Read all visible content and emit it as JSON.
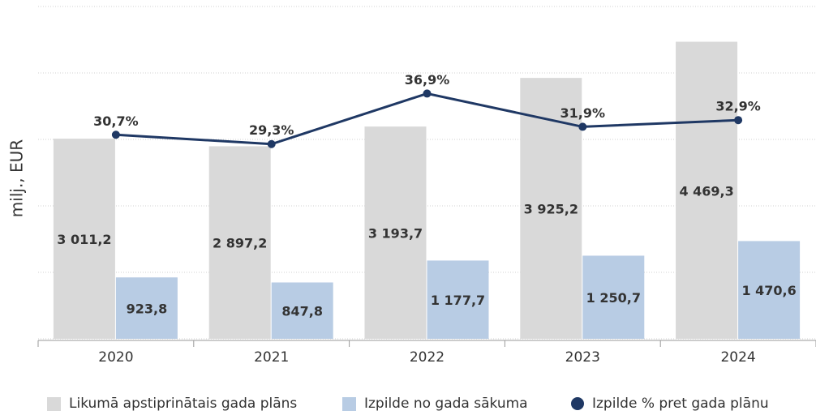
{
  "chart_data": {
    "type": "bar",
    "y_label": "milj., EUR",
    "categories": [
      "2020",
      "2021",
      "2022",
      "2023",
      "2024"
    ],
    "series": [
      {
        "name": "Likumā apstiprinātais gada plāns",
        "color": "#d9d9d9",
        "type": "bar",
        "values": [
          3011.2,
          2897.2,
          3193.7,
          3925.2,
          4469.3
        ],
        "value_labels": [
          "3 011,2",
          "2 897,2",
          "3 193,7",
          "3 925,2",
          "4 469,3"
        ]
      },
      {
        "name": "Izpilde no gada sākuma",
        "color": "#b8cce4",
        "type": "bar",
        "values": [
          923.8,
          847.8,
          1177.7,
          1250.7,
          1470.6
        ],
        "value_labels": [
          "923,8",
          "847,8",
          "1 177,7",
          "1 250,7",
          "1 470,6"
        ]
      },
      {
        "name": "Izpilde % pret gada plānu",
        "color": "#1f3864",
        "type": "line",
        "axis": "y2",
        "values": [
          30.7,
          29.3,
          36.9,
          31.9,
          32.9
        ],
        "value_labels": [
          "30,7%",
          "29,3%",
          "36,9%",
          "31,9%",
          "32,9%"
        ]
      }
    ],
    "ylim": [
      0,
      5000
    ],
    "yticks": [
      0,
      1000,
      2000,
      3000,
      4000,
      5000
    ],
    "y2lim": [
      0,
      50
    ],
    "grid": true,
    "legend": "bottom"
  }
}
